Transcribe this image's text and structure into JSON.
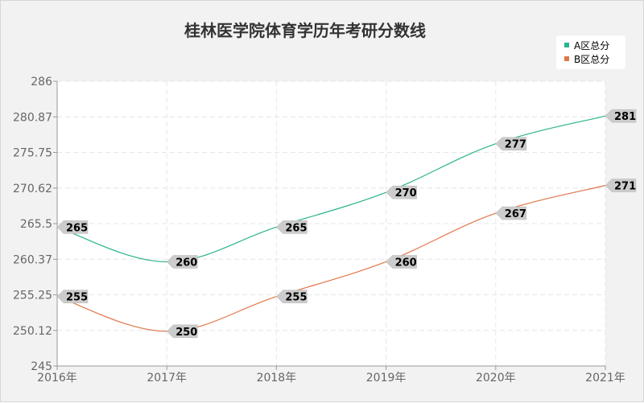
{
  "chart_data": {
    "type": "line",
    "title": "桂林医学院体育学历年考研分数线",
    "categories": [
      "2016年",
      "2017年",
      "2018年",
      "2019年",
      "2020年",
      "2021年"
    ],
    "series": [
      {
        "name": "A区总分",
        "values": [
          265,
          260,
          265,
          270,
          277,
          281
        ],
        "color": "#2ab38e"
      },
      {
        "name": "B区总分",
        "values": [
          255,
          250,
          255,
          260,
          267,
          271
        ],
        "color": "#e0754a"
      }
    ],
    "y_ticks": [
      "245",
      "250.12",
      "255.25",
      "260.37",
      "265.5",
      "270.62",
      "275.75",
      "280.87",
      "286"
    ],
    "ylim": [
      245,
      286
    ],
    "grid": true,
    "legend": "top-right"
  }
}
